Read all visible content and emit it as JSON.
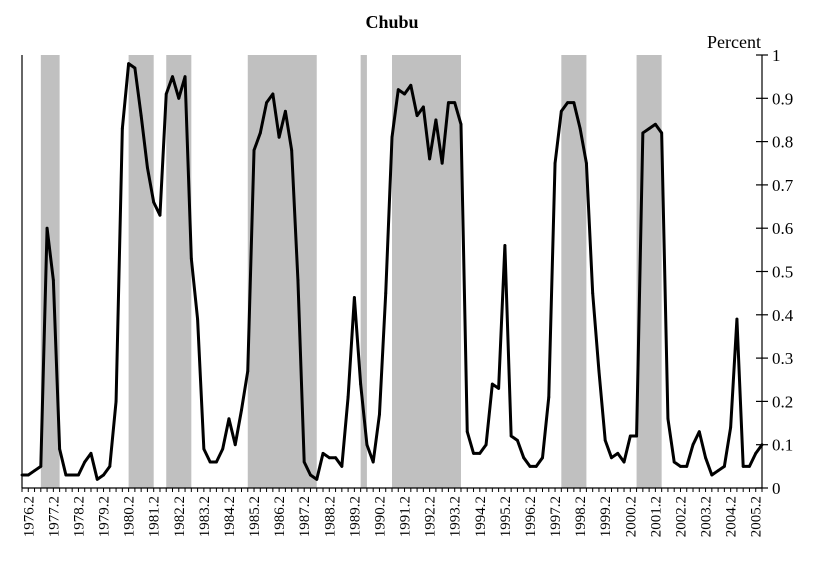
{
  "chart_data": {
    "type": "line",
    "title": "Chubu",
    "ylabel": "Percent",
    "xlabel": "",
    "ylim": [
      0,
      1
    ],
    "y_axis_side": "right",
    "y_ticks": [
      0,
      0.1,
      0.2,
      0.3,
      0.4,
      0.5,
      0.6,
      0.7,
      0.8,
      0.9,
      1
    ],
    "y_tick_labels": [
      "0",
      "0.1",
      "0.2",
      "0.3",
      "0.4",
      "0.5",
      "0.6",
      "0.7",
      "0.8",
      "0.9",
      "1"
    ],
    "x_tick_labels": [
      "1976.2",
      "1977.2",
      "1978.2",
      "1979.2",
      "1980.2",
      "1981.2",
      "1982.2",
      "1983.2",
      "1984.2",
      "1985.2",
      "1986.2",
      "1987.2",
      "1988.2",
      "1989.2",
      "1990.2",
      "1991.2",
      "1992.2",
      "1993.2",
      "1994.2",
      "1995.2",
      "1996.2",
      "1997.2",
      "1998.2",
      "1999.2",
      "2000.2",
      "2001.2",
      "2002.2",
      "2003.2",
      "2004.2",
      "2005.2"
    ],
    "grid": false,
    "legend": "none",
    "line_color": "#000000",
    "shade_color": "#c0c0c0",
    "shaded_periods": [
      [
        "1976.4",
        "1977.3"
      ],
      [
        "1980.2",
        "1981.2"
      ],
      [
        "1981.4",
        "1982.4"
      ],
      [
        "1985.1",
        "1987.4"
      ],
      [
        "1989.3",
        "1989.4"
      ],
      [
        "1990.4",
        "1993.3"
      ],
      [
        "1997.3",
        "1998.3"
      ],
      [
        "2000.3",
        "2001.3"
      ]
    ],
    "series": [
      {
        "x": [
          "1976.1",
          "1976.2",
          "1976.3",
          "1976.4",
          "1977.1",
          "1977.2",
          "1977.3",
          "1977.4",
          "1978.1",
          "1978.2",
          "1978.3",
          "1978.4",
          "1979.1",
          "1979.2",
          "1979.3",
          "1979.4",
          "1980.1",
          "1980.2",
          "1980.3",
          "1980.4",
          "1981.1",
          "1981.2",
          "1981.3",
          "1981.4",
          "1982.1",
          "1982.2",
          "1982.3",
          "1982.4",
          "1983.1",
          "1983.2",
          "1983.3",
          "1983.4",
          "1984.1",
          "1984.2",
          "1984.3",
          "1984.4",
          "1985.1",
          "1985.2",
          "1985.3",
          "1985.4",
          "1986.1",
          "1986.2",
          "1986.3",
          "1986.4",
          "1987.1",
          "1987.2",
          "1987.3",
          "1987.4",
          "1988.1",
          "1988.2",
          "1988.3",
          "1988.4",
          "1989.1",
          "1989.2",
          "1989.3",
          "1989.4",
          "1990.1",
          "1990.2",
          "1990.3",
          "1990.4",
          "1991.1",
          "1991.2",
          "1991.3",
          "1991.4",
          "1992.1",
          "1992.2",
          "1992.3",
          "1992.4",
          "1993.1",
          "1993.2",
          "1993.3",
          "1993.4",
          "1994.1",
          "1994.2",
          "1994.3",
          "1994.4",
          "1995.1",
          "1995.2",
          "1995.3",
          "1995.4",
          "1996.1",
          "1996.2",
          "1996.3",
          "1996.4",
          "1997.1",
          "1997.2",
          "1997.3",
          "1997.4",
          "1998.1",
          "1998.2",
          "1998.3",
          "1998.4",
          "1999.1",
          "1999.2",
          "1999.3",
          "1999.4",
          "2000.1",
          "2000.2",
          "2000.3",
          "2000.4",
          "2001.1",
          "2001.2",
          "2001.3",
          "2001.4",
          "2002.1",
          "2002.2",
          "2002.3",
          "2002.4",
          "2003.1",
          "2003.2",
          "2003.3",
          "2003.4",
          "2004.1",
          "2004.2",
          "2004.3",
          "2004.4",
          "2005.1",
          "2005.2",
          "2005.3"
        ],
        "values": [
          0.03,
          0.03,
          0.04,
          0.05,
          0.6,
          0.48,
          0.09,
          0.03,
          0.03,
          0.03,
          0.06,
          0.08,
          0.02,
          0.03,
          0.05,
          0.2,
          0.83,
          0.98,
          0.97,
          0.86,
          0.74,
          0.66,
          0.63,
          0.91,
          0.95,
          0.9,
          0.95,
          0.53,
          0.39,
          0.09,
          0.06,
          0.06,
          0.09,
          0.16,
          0.1,
          0.18,
          0.27,
          0.78,
          0.82,
          0.89,
          0.91,
          0.81,
          0.87,
          0.78,
          0.48,
          0.06,
          0.03,
          0.02,
          0.08,
          0.07,
          0.07,
          0.05,
          0.21,
          0.44,
          0.24,
          0.1,
          0.06,
          0.17,
          0.45,
          0.81,
          0.92,
          0.91,
          0.93,
          0.86,
          0.88,
          0.76,
          0.85,
          0.75,
          0.89,
          0.89,
          0.84,
          0.13,
          0.08,
          0.08,
          0.1,
          0.24,
          0.23,
          0.56,
          0.12,
          0.11,
          0.07,
          0.05,
          0.05,
          0.07,
          0.21,
          0.75,
          0.87,
          0.89,
          0.89,
          0.83,
          0.75,
          0.45,
          0.27,
          0.11,
          0.07,
          0.08,
          0.06,
          0.12,
          0.12,
          0.82,
          0.83,
          0.84,
          0.82,
          0.16,
          0.06,
          0.05,
          0.05,
          0.1,
          0.13,
          0.07,
          0.03,
          0.04,
          0.05,
          0.14,
          0.39,
          0.05,
          0.05,
          0.08,
          0.1
        ]
      }
    ]
  }
}
